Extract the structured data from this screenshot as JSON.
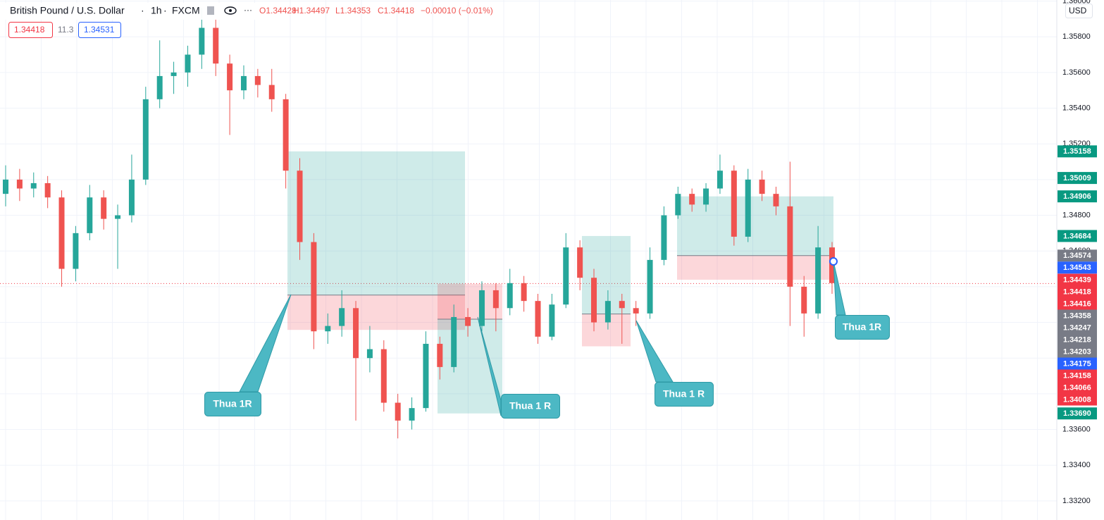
{
  "header": {
    "symbol": "British Pound / U.S. Dollar",
    "interval": "1h",
    "source": "FXCM",
    "ohlc": [
      "O1.34428",
      "H1.34497",
      "L1.34353",
      "C1.34418",
      "−0.00010 (−0.01%)"
    ],
    "bid": "1.34418",
    "spread": "11.3",
    "ask": "1.34531",
    "currency": "USD"
  },
  "chart_data": {
    "type": "candlestick",
    "up_color": "#26a69a",
    "down_color": "#ef5350",
    "ylim": [
      1.33093,
      1.36006
    ],
    "yticks": [
      {
        "value": 1.332,
        "label": "1.33200"
      },
      {
        "value": 1.334,
        "label": "1.33400"
      },
      {
        "value": 1.336,
        "label": "1.33600"
      },
      {
        "value": 1.338,
        "label": "1.33800"
      },
      {
        "value": 1.34,
        "label": "1.34000"
      },
      {
        "value": 1.342,
        "label": "1.34200"
      },
      {
        "value": 1.344,
        "label": "1.34400"
      },
      {
        "value": 1.346,
        "label": "1.34600"
      },
      {
        "value": 1.348,
        "label": "1.34800"
      },
      {
        "value": 1.35,
        "label": "1.35000"
      },
      {
        "value": 1.352,
        "label": "1.35200"
      },
      {
        "value": 1.354,
        "label": "1.35400"
      },
      {
        "value": 1.356,
        "label": "1.35600"
      },
      {
        "value": 1.358,
        "label": "1.35800"
      },
      {
        "value": 1.36,
        "label": "1.36000"
      }
    ],
    "grid": true,
    "candles": [
      [
        1.3492,
        1.3508,
        1.3485,
        1.35
      ],
      [
        1.35,
        1.3506,
        1.3488,
        1.3495
      ],
      [
        1.3495,
        1.3504,
        1.349,
        1.3498
      ],
      [
        1.3498,
        1.3502,
        1.3484,
        1.349
      ],
      [
        1.349,
        1.3494,
        1.344,
        1.345
      ],
      [
        1.345,
        1.3474,
        1.3443,
        1.347
      ],
      [
        1.347,
        1.3497,
        1.3466,
        1.349
      ],
      [
        1.349,
        1.3494,
        1.3472,
        1.3478
      ],
      [
        1.3478,
        1.3486,
        1.345,
        1.348
      ],
      [
        1.348,
        1.3514,
        1.3476,
        1.35
      ],
      [
        1.35,
        1.3552,
        1.3497,
        1.3545
      ],
      [
        1.3545,
        1.3578,
        1.354,
        1.3558
      ],
      [
        1.3558,
        1.3566,
        1.3548,
        1.356
      ],
      [
        1.356,
        1.3575,
        1.3552,
        1.357
      ],
      [
        1.357,
        1.3596,
        1.3562,
        1.3585
      ],
      [
        1.3585,
        1.359,
        1.3558,
        1.3565
      ],
      [
        1.3565,
        1.357,
        1.3525,
        1.355
      ],
      [
        1.355,
        1.3564,
        1.3545,
        1.3558
      ],
      [
        1.3558,
        1.3562,
        1.3546,
        1.3553
      ],
      [
        1.3553,
        1.3562,
        1.3538,
        1.3545
      ],
      [
        1.3545,
        1.3548,
        1.3495,
        1.3505
      ],
      [
        1.3505,
        1.3512,
        1.3455,
        1.3465
      ],
      [
        1.3465,
        1.347,
        1.3405,
        1.3415
      ],
      [
        1.3415,
        1.3425,
        1.3408,
        1.3418
      ],
      [
        1.3418,
        1.3438,
        1.3412,
        1.3428
      ],
      [
        1.3428,
        1.3432,
        1.3365,
        1.34
      ],
      [
        1.34,
        1.3418,
        1.3392,
        1.3405
      ],
      [
        1.3405,
        1.341,
        1.337,
        1.3375
      ],
      [
        1.3375,
        1.338,
        1.3355,
        1.3365
      ],
      [
        1.3365,
        1.3378,
        1.336,
        1.3372
      ],
      [
        1.3372,
        1.3415,
        1.337,
        1.3408
      ],
      [
        1.3408,
        1.3412,
        1.3388,
        1.3395
      ],
      [
        1.3395,
        1.343,
        1.3392,
        1.3423
      ],
      [
        1.3423,
        1.3428,
        1.3412,
        1.3418
      ],
      [
        1.3418,
        1.3443,
        1.3415,
        1.3438
      ],
      [
        1.3438,
        1.3442,
        1.3415,
        1.3428
      ],
      [
        1.3428,
        1.345,
        1.3424,
        1.3442
      ],
      [
        1.3442,
        1.3446,
        1.3426,
        1.3432
      ],
      [
        1.3432,
        1.3436,
        1.3408,
        1.3412
      ],
      [
        1.3412,
        1.3436,
        1.341,
        1.343
      ],
      [
        1.343,
        1.347,
        1.3428,
        1.3462
      ],
      [
        1.3462,
        1.3466,
        1.3438,
        1.3445
      ],
      [
        1.3445,
        1.345,
        1.3415,
        1.342
      ],
      [
        1.342,
        1.3438,
        1.3416,
        1.3432
      ],
      [
        1.3432,
        1.3436,
        1.3408,
        1.3428
      ],
      [
        1.3428,
        1.3432,
        1.3418,
        1.3425
      ],
      [
        1.3425,
        1.3462,
        1.3422,
        1.3455
      ],
      [
        1.3455,
        1.3485,
        1.3452,
        1.348
      ],
      [
        1.348,
        1.3496,
        1.3478,
        1.3492
      ],
      [
        1.3492,
        1.3495,
        1.3482,
        1.3486
      ],
      [
        1.3486,
        1.3498,
        1.3482,
        1.3495
      ],
      [
        1.3495,
        1.3514,
        1.3492,
        1.3505
      ],
      [
        1.3505,
        1.3508,
        1.3463,
        1.3468
      ],
      [
        1.3468,
        1.3506,
        1.3465,
        1.35
      ],
      [
        1.35,
        1.3505,
        1.3488,
        1.3492
      ],
      [
        1.3492,
        1.3496,
        1.348,
        1.3485
      ],
      [
        1.3485,
        1.351,
        1.3418,
        1.344
      ],
      [
        1.344,
        1.3446,
        1.3412,
        1.3425
      ],
      [
        1.3425,
        1.3474,
        1.3422,
        1.3462
      ],
      [
        1.3462,
        1.3465,
        1.3436,
        1.3442
      ]
    ],
    "positions": [
      {
        "target": 1.35158,
        "entry": 1.34353,
        "stop": 1.34158,
        "annotation": "Thua 1R"
      },
      {
        "target": 1.3369,
        "entry": 1.34218,
        "stop": 1.34416,
        "annotation": "Thua 1 R"
      },
      {
        "target": 1.34684,
        "entry": 1.34247,
        "stop": 1.34066,
        "annotation": "Thua 1 R"
      },
      {
        "target": 1.34906,
        "entry": 1.34574,
        "stop": 1.34439,
        "annotation": "Thua 1R"
      }
    ],
    "price_tags": [
      {
        "value": 1.35158,
        "label": "1.35158",
        "color": "#089981"
      },
      {
        "value": 1.35009,
        "label": "1.35009",
        "color": "#089981"
      },
      {
        "value": 1.34906,
        "label": "1.34906",
        "color": "#089981"
      },
      {
        "value": 1.34684,
        "label": "1.34684",
        "color": "#089981"
      },
      {
        "value": 1.34574,
        "label": "1.34574",
        "color": "#787b86"
      },
      {
        "value": 1.34543,
        "label": "1.34543",
        "color": "#2962ff"
      },
      {
        "value": 1.34439,
        "label": "1.34439",
        "color": "#f23645"
      },
      {
        "value": 1.34418,
        "label": "1.34418",
        "color": "#f23645"
      },
      {
        "value": 1.34416,
        "label": "1.34416",
        "color": "#f23645"
      },
      {
        "value": 1.34358,
        "label": "1.34358",
        "color": "#787b86"
      },
      {
        "value": 1.34247,
        "label": "1.34247",
        "color": "#787b86"
      },
      {
        "value": 1.34218,
        "label": "1.34218",
        "color": "#787b86"
      },
      {
        "value": 1.34203,
        "label": "1.34203",
        "color": "#787b86"
      },
      {
        "value": 1.34175,
        "label": "1.34175",
        "color": "#2962ff"
      },
      {
        "value": 1.34158,
        "label": "1.34158",
        "color": "#f23645"
      },
      {
        "value": 1.34066,
        "label": "1.34066",
        "color": "#f23645"
      },
      {
        "value": 1.34008,
        "label": "1.34008",
        "color": "#f23645"
      },
      {
        "value": 1.3369,
        "label": "1.33690",
        "color": "#089981"
      }
    ]
  }
}
